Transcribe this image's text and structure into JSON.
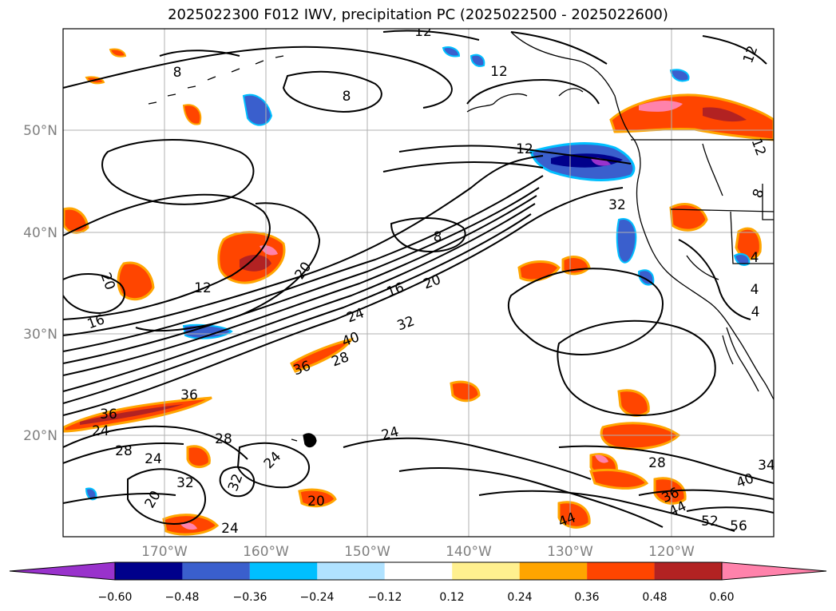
{
  "title": "2025022300 F012 IWV, precipitation PC (2025022500 - 2025022600)",
  "lat_labels": [
    "50°N",
    "40°N",
    "30°N",
    "20°N"
  ],
  "lon_labels": [
    "170°W",
    "160°W",
    "150°W",
    "140°W",
    "130°W",
    "120°W"
  ],
  "contour_labels": [
    {
      "text": "12"
    },
    {
      "text": "8"
    },
    {
      "text": "8"
    },
    {
      "text": "12"
    },
    {
      "text": "12"
    },
    {
      "text": "8"
    },
    {
      "text": "20"
    },
    {
      "text": "12"
    },
    {
      "text": "16"
    },
    {
      "text": "20"
    },
    {
      "text": "16"
    },
    {
      "text": "20"
    },
    {
      "text": "24"
    },
    {
      "text": "32"
    },
    {
      "text": "40"
    },
    {
      "text": "28"
    },
    {
      "text": "36"
    },
    {
      "text": "36"
    },
    {
      "text": "36"
    },
    {
      "text": "24"
    },
    {
      "text": "28"
    },
    {
      "text": "24"
    },
    {
      "text": "28"
    },
    {
      "text": "24"
    },
    {
      "text": "32"
    },
    {
      "text": "32"
    },
    {
      "text": "20"
    },
    {
      "text": "24"
    },
    {
      "text": "20"
    },
    {
      "text": "24"
    },
    {
      "text": "32"
    },
    {
      "text": "4"
    },
    {
      "text": "4"
    },
    {
      "text": "4"
    },
    {
      "text": "28"
    },
    {
      "text": "36"
    },
    {
      "text": "40"
    },
    {
      "text": "44"
    },
    {
      "text": "44"
    },
    {
      "text": "52"
    },
    {
      "text": "56"
    },
    {
      "text": "34"
    },
    {
      "text": "12"
    },
    {
      "text": "12"
    },
    {
      "text": "8"
    }
  ],
  "colorbar": {
    "ticks": [
      "−0.60",
      "−0.48",
      "−0.36",
      "−0.24",
      "−0.12",
      "0.12",
      "0.24",
      "0.36",
      "0.48",
      "0.60"
    ],
    "colors": [
      "#9932cc",
      "#00008b",
      "#3a5fcd",
      "#00bfff",
      "#b0e2ff",
      "#ffffff",
      "#fff08f",
      "#ffa500",
      "#ff4500",
      "#b22222",
      "#ff82ab"
    ]
  },
  "colors": {
    "grid": "#b0b0b0",
    "contour": "#000000",
    "axis_label": "#808080"
  }
}
